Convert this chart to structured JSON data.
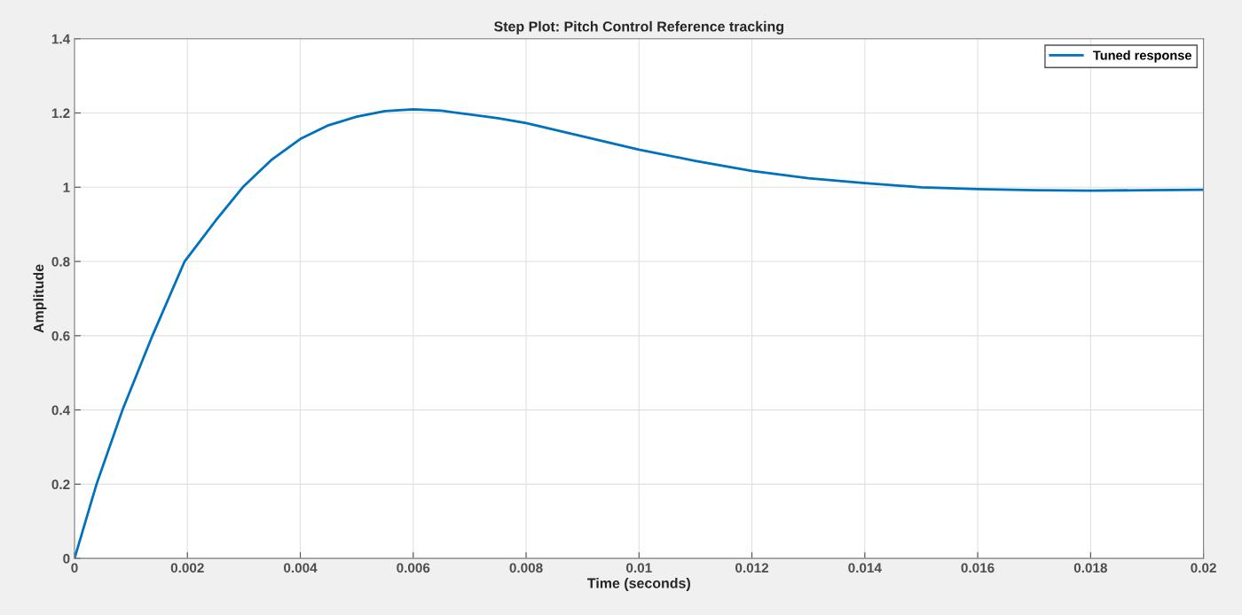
{
  "chart_data": {
    "type": "line",
    "title": "Step Plot: Pitch Control Reference tracking",
    "xlabel": "Time (seconds)",
    "ylabel": "Amplitude",
    "series": [
      {
        "name": "Tuned response",
        "color": "#0072bd",
        "x": [
          0,
          0.00039,
          0.00085,
          0.00138,
          0.00195,
          0.0025,
          0.00298,
          0.0035,
          0.004,
          0.0045,
          0.005,
          0.0055,
          0.006,
          0.0065,
          0.007,
          0.0075,
          0.008,
          0.009,
          0.01,
          0.011,
          0.012,
          0.013,
          0.014,
          0.015,
          0.016,
          0.017,
          0.018,
          0.019,
          0.02
        ],
        "values": [
          0,
          0.2,
          0.4,
          0.6,
          0.8,
          0.91,
          1.0,
          1.075,
          1.13,
          1.167,
          1.19,
          1.205,
          1.21,
          1.206,
          1.196,
          1.186,
          1.173,
          1.137,
          1.101,
          1.071,
          1.044,
          1.024,
          1.011,
          1.0,
          0.995,
          0.992,
          0.991,
          0.992,
          0.993
        ]
      }
    ],
    "xlim": [
      0,
      0.02
    ],
    "xticks": [
      0,
      0.002,
      0.004,
      0.006,
      0.008,
      0.01,
      0.012,
      0.014,
      0.016,
      0.018,
      0.02
    ],
    "ylim": [
      0,
      1.4
    ],
    "yticks": [
      0,
      0.2,
      0.4,
      0.6,
      0.8,
      1,
      1.2,
      1.4
    ],
    "grid": true,
    "legend": "top right",
    "line_style": "solid",
    "marker": "none"
  }
}
